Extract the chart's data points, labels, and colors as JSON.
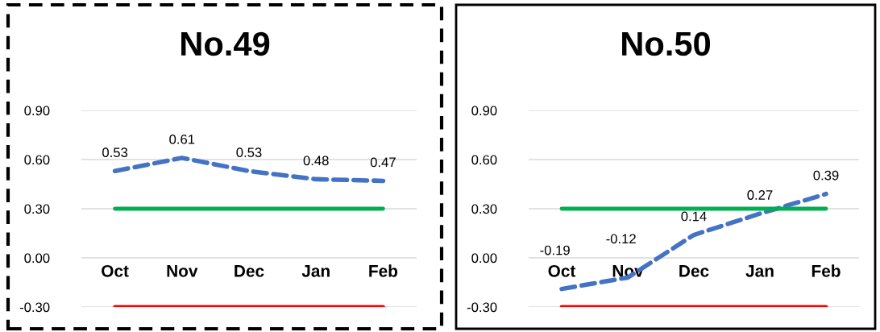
{
  "chart_data": [
    {
      "type": "line",
      "title": "No.49",
      "categories": [
        "Oct",
        "Nov",
        "Dec",
        "Jan",
        "Feb"
      ],
      "ylim": [
        -0.3,
        0.9
      ],
      "yticks": [
        {
          "value": -0.3,
          "label": "-0.30"
        },
        {
          "value": 0,
          "label": "0.00"
        },
        {
          "value": 0.3,
          "label": "0.30"
        },
        {
          "value": 0.6,
          "label": "0.60"
        },
        {
          "value": 0.9,
          "label": "0.90"
        }
      ],
      "grid": "y",
      "marker": "none",
      "series": [
        {
          "color": "#4472c4",
          "line_style": "dashed",
          "values": [
            0.53,
            0.61,
            0.53,
            0.48,
            0.47
          ],
          "value_labels": [
            "0.53",
            "0.61",
            "0.53",
            "0.48",
            "0.47"
          ]
        },
        {
          "color": "#00b050",
          "line_style": "solid",
          "values": [
            0.3,
            0.3,
            0.3,
            0.3,
            0.3
          ]
        },
        {
          "color": "#ff0000",
          "line_style": "solid",
          "values": [
            -0.3,
            -0.3,
            -0.3,
            -0.3,
            -0.3
          ]
        }
      ]
    },
    {
      "type": "line",
      "title": "No.50",
      "categories": [
        "Oct",
        "Nov",
        "Dec",
        "Jan",
        "Feb"
      ],
      "ylim": [
        -0.3,
        0.9
      ],
      "yticks": [
        {
          "value": -0.3,
          "label": "-0.30"
        },
        {
          "value": 0,
          "label": "0.00"
        },
        {
          "value": 0.3,
          "label": "0.30"
        },
        {
          "value": 0.6,
          "label": "0.60"
        },
        {
          "value": 0.9,
          "label": "0.90"
        }
      ],
      "grid": "y",
      "marker": "none",
      "series": [
        {
          "color": "#4472c4",
          "line_style": "dashed",
          "values": [
            -0.19,
            -0.12,
            0.14,
            0.27,
            0.39
          ],
          "value_labels": [
            "-0.19",
            "-0.12",
            "0.14",
            "0.27",
            "0.39"
          ]
        },
        {
          "color": "#00b050",
          "line_style": "solid",
          "values": [
            0.3,
            0.3,
            0.3,
            0.3,
            0.3
          ]
        },
        {
          "color": "#ff0000",
          "line_style": "solid",
          "values": [
            -0.3,
            -0.3,
            -0.3,
            -0.3,
            -0.3
          ]
        }
      ]
    }
  ]
}
